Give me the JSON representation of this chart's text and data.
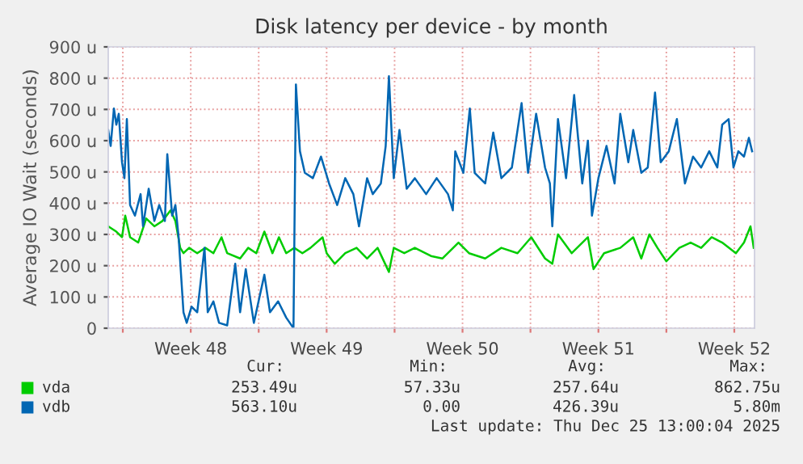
{
  "chart_data": {
    "type": "line",
    "title": "Disk latency per device - by month",
    "ylabel": "Average IO Wait (seconds)",
    "xlim": [
      "2025-11-23T06:00",
      "2025-12-26T13:00"
    ],
    "ylim": [
      0,
      900
    ],
    "xticks": [
      {
        "value": "2025-11-24T00:00",
        "label": null
      },
      {
        "value": "2025-11-27T12:00",
        "label": "Week 48"
      },
      {
        "value": "2025-12-01T00:00",
        "label": null
      },
      {
        "value": "2025-12-04T12:00",
        "label": "Week 49"
      },
      {
        "value": "2025-12-08T00:00",
        "label": null
      },
      {
        "value": "2025-12-11T12:00",
        "label": "Week 50"
      },
      {
        "value": "2025-12-15T00:00",
        "label": null
      },
      {
        "value": "2025-12-18T12:00",
        "label": "Week 51"
      },
      {
        "value": "2025-12-22T00:00",
        "label": null
      },
      {
        "value": "2025-12-25T12:00",
        "label": "Week 52"
      }
    ],
    "yticks": [
      0,
      {
        "value": 100,
        "label": "100 u"
      },
      {
        "value": 200,
        "label": "200 u"
      },
      {
        "value": 300,
        "label": "300 u"
      },
      {
        "value": 400,
        "label": "400 u"
      },
      {
        "value": 500,
        "label": "500 u"
      },
      {
        "value": 600,
        "label": "600 u"
      },
      {
        "value": 700,
        "label": "700 u"
      },
      {
        "value": 800,
        "label": "800 u"
      },
      {
        "value": 900,
        "label": "900 u"
      }
    ],
    "grid": true,
    "legend": "bottom",
    "series": [
      {
        "name": "vda",
        "color": "#00cc00",
        "x": [
          "2025-11-23T06:00",
          "2025-11-23T16:00",
          "2025-11-23T23:00",
          "2025-11-24T03:00",
          "2025-11-24T09:00",
          "2025-11-24T19:00",
          "2025-11-25T05:00",
          "2025-11-25T15:00",
          "2025-11-26T01:00",
          "2025-11-26T11:00",
          "2025-11-26T17:00",
          "2025-11-26T23:00",
          "2025-11-27T03:00",
          "2025-11-27T10:00",
          "2025-11-27T20:00",
          "2025-11-28T06:00",
          "2025-11-28T16:00",
          "2025-11-29T02:00",
          "2025-11-29T09:00",
          "2025-11-30T01:00",
          "2025-11-30T11:00",
          "2025-11-30T21:00",
          "2025-12-01T07:00",
          "2025-12-01T17:00",
          "2025-12-02T01:00",
          "2025-12-02T10:00",
          "2025-12-02T20:00",
          "2025-12-03T06:00",
          "2025-12-03T16:00",
          "2025-12-04T07:00",
          "2025-12-04T12:00",
          "2025-12-04T22:00",
          "2025-12-05T11:00",
          "2025-12-06T01:00",
          "2025-12-06T14:00",
          "2025-12-07T03:00",
          "2025-12-07T17:00",
          "2025-12-07T23:00",
          "2025-12-08T12:00",
          "2025-12-09T01:00",
          "2025-12-09T21:00",
          "2025-12-10T11:00",
          "2025-12-11T07:00",
          "2025-12-11T20:00",
          "2025-12-12T16:00",
          "2025-12-13T12:00",
          "2025-12-14T08:00",
          "2025-12-15T01:00",
          "2025-12-15T18:00",
          "2025-12-16T03:00",
          "2025-12-16T10:00",
          "2025-12-17T03:00",
          "2025-12-17T23:00",
          "2025-12-18T06:00",
          "2025-12-18T19:00",
          "2025-12-19T15:00",
          "2025-12-20T07:00",
          "2025-12-20T17:00",
          "2025-12-21T03:00",
          "2025-12-21T13:00",
          "2025-12-22T00:00",
          "2025-12-22T16:00",
          "2025-12-23T06:00",
          "2025-12-23T19:00",
          "2025-12-24T08:00",
          "2025-12-24T21:00",
          "2025-12-25T14:00",
          "2025-12-26T00:00",
          "2025-12-26T08:00",
          "2025-12-26T12:00"
        ],
        "values": [
          326,
          309,
          291,
          360,
          291,
          274,
          351,
          326,
          343,
          377,
          343,
          257,
          240,
          257,
          240,
          257,
          240,
          291,
          240,
          223,
          257,
          240,
          309,
          240,
          291,
          240,
          257,
          240,
          257,
          291,
          240,
          206,
          240,
          257,
          223,
          257,
          180,
          257,
          240,
          257,
          231,
          223,
          274,
          240,
          223,
          257,
          240,
          291,
          223,
          206,
          300,
          240,
          291,
          189,
          240,
          257,
          291,
          223,
          300,
          257,
          214,
          257,
          274,
          257,
          291,
          274,
          240,
          274,
          326,
          257
        ]
      },
      {
        "name": "vdb",
        "color": "#0066b3",
        "x": [
          "2025-11-23T06:00",
          "2025-11-23T09:00",
          "2025-11-23T13:00",
          "2025-11-23T16:00",
          "2025-11-23T19:00",
          "2025-11-23T23:00",
          "2025-11-24T02:00",
          "2025-11-24T05:00",
          "2025-11-24T09:00",
          "2025-11-24T15:00",
          "2025-11-24T22:00",
          "2025-11-25T01:00",
          "2025-11-25T08:00",
          "2025-11-25T15:00",
          "2025-11-25T21:00",
          "2025-11-26T04:00",
          "2025-11-26T07:00",
          "2025-11-26T13:00",
          "2025-11-26T17:00",
          "2025-11-26T21:00",
          "2025-11-27T00:00",
          "2025-11-27T03:00",
          "2025-11-27T07:00",
          "2025-11-27T13:00",
          "2025-11-27T20:00",
          "2025-11-28T05:00",
          "2025-11-28T09:00",
          "2025-11-28T16:00",
          "2025-11-28T23:00",
          "2025-11-29T09:00",
          "2025-11-29T19:00",
          "2025-11-30T01:00",
          "2025-11-30T08:00",
          "2025-11-30T18:00",
          "2025-12-01T07:00",
          "2025-12-01T14:00",
          "2025-12-02T00:00",
          "2025-12-02T10:00",
          "2025-12-02T19:00",
          "2025-12-02T22:00",
          "2025-12-03T03:00",
          "2025-12-03T09:00",
          "2025-12-03T19:00",
          "2025-12-04T05:00",
          "2025-12-04T15:00",
          "2025-12-05T01:00",
          "2025-12-05T11:00",
          "2025-12-05T21:00",
          "2025-12-06T04:00",
          "2025-12-06T14:00",
          "2025-12-06T21:00",
          "2025-12-07T07:00",
          "2025-12-07T13:00",
          "2025-12-07T17:00",
          "2025-12-07T23:00",
          "2025-12-08T06:00",
          "2025-12-08T15:00",
          "2025-12-09T01:00",
          "2025-12-09T15:00",
          "2025-12-10T04:00",
          "2025-12-10T18:00",
          "2025-12-11T00:00",
          "2025-12-11T03:00",
          "2025-12-11T13:00",
          "2025-12-11T21:00",
          "2025-12-12T03:00",
          "2025-12-12T16:00",
          "2025-12-13T02:00",
          "2025-12-13T12:00",
          "2025-12-14T01:00",
          "2025-12-14T08:00",
          "2025-12-14T13:00",
          "2025-12-14T21:00",
          "2025-12-15T07:00",
          "2025-12-15T18:00",
          "2025-12-16T00:00",
          "2025-12-16T03:00",
          "2025-12-16T10:00",
          "2025-12-16T20:00",
          "2025-12-17T06:00",
          "2025-12-17T16:00",
          "2025-12-17T23:00",
          "2025-12-18T04:00",
          "2025-12-18T12:00",
          "2025-12-18T22:00",
          "2025-12-19T08:00",
          "2025-12-19T15:00",
          "2025-12-20T01:00",
          "2025-12-20T07:00",
          "2025-12-20T17:00",
          "2025-12-21T01:00",
          "2025-12-21T10:00",
          "2025-12-21T17:00",
          "2025-12-22T03:00",
          "2025-12-22T13:00",
          "2025-12-22T23:00",
          "2025-12-23T09:00",
          "2025-12-23T19:00",
          "2025-12-24T05:00",
          "2025-12-24T15:00",
          "2025-12-24T21:00",
          "2025-12-25T05:00",
          "2025-12-25T11:00",
          "2025-12-25T17:00",
          "2025-12-26T00:00",
          "2025-12-26T06:00",
          "2025-12-26T10:00"
        ],
        "values": [
          634,
          583,
          703,
          651,
          686,
          531,
          480,
          669,
          394,
          360,
          429,
          326,
          446,
          343,
          394,
          343,
          557,
          360,
          394,
          291,
          171,
          51,
          17,
          69,
          51,
          257,
          51,
          86,
          17,
          9,
          206,
          51,
          189,
          17,
          171,
          51,
          86,
          34,
          0,
          780,
          566,
          497,
          480,
          549,
          463,
          394,
          480,
          429,
          326,
          480,
          429,
          463,
          583,
          806,
          480,
          634,
          446,
          480,
          429,
          480,
          429,
          377,
          566,
          497,
          703,
          497,
          463,
          626,
          480,
          514,
          634,
          720,
          497,
          686,
          514,
          463,
          326,
          669,
          480,
          746,
          463,
          600,
          360,
          480,
          583,
          463,
          686,
          531,
          634,
          497,
          514,
          754,
          531,
          566,
          669,
          463,
          549,
          514,
          566,
          514,
          651,
          669,
          514,
          566,
          549,
          609,
          566
        ]
      }
    ],
    "annotations": [
      "Cur:",
      "Min:",
      "Avg:",
      "Max:",
      "253.49u",
      "57.33u",
      "257.64u",
      "862.75u",
      "563.10u",
      "0.00",
      "426.39u",
      "5.80m",
      "Last update: Thu Dec 25 13:00:04 2025"
    ]
  }
}
